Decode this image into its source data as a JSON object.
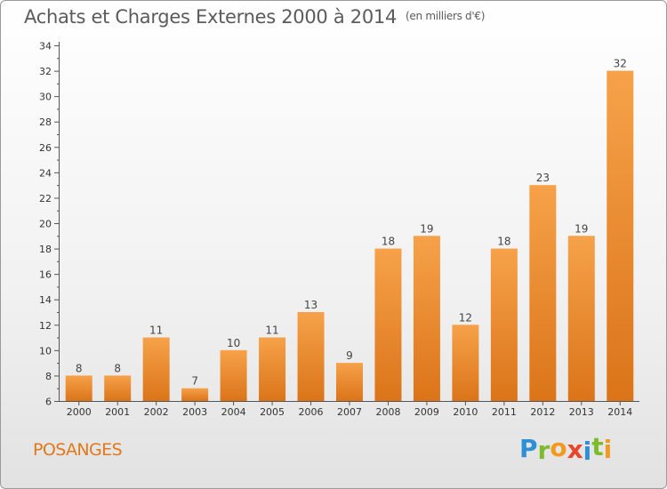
{
  "chart_data": {
    "type": "bar",
    "title": "Achats et Charges Externes 2000 à 2014",
    "unit_label": "(en milliers d'€)",
    "categories": [
      "2000",
      "2001",
      "2002",
      "2003",
      "2004",
      "2005",
      "2006",
      "2007",
      "2008",
      "2009",
      "2010",
      "2011",
      "2012",
      "2013",
      "2014"
    ],
    "values": [
      8,
      8,
      11,
      7,
      10,
      11,
      13,
      9,
      18,
      19,
      12,
      18,
      23,
      19,
      32
    ],
    "ylim": [
      6,
      34
    ],
    "yticks": [
      6,
      8,
      10,
      12,
      14,
      16,
      18,
      20,
      22,
      24,
      26,
      28,
      30,
      32,
      34
    ],
    "xlabel": "",
    "ylabel": "",
    "grid": false,
    "bar_color_top": "#f6a24a",
    "bar_color_bottom": "#db7419"
  },
  "commune": "POSANGES",
  "logo": {
    "letters": [
      "P",
      "r",
      "o",
      "x",
      "i",
      "t",
      "i"
    ],
    "colors": [
      "#2e8ed6",
      "#7dbb2d",
      "#f29a1f",
      "#e8462b",
      "#2e8ed6",
      "#7dbb2d",
      "#f29a1f"
    ]
  },
  "colors": {
    "title": "#5b5b5b",
    "commune": "#e2781c",
    "axis": "#555555"
  }
}
